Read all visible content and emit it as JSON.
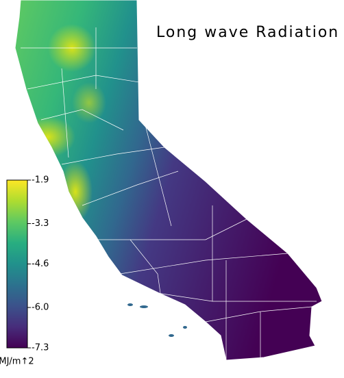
{
  "map": {
    "title": "Long wave Radiation",
    "colorbar": {
      "label": "MJ/m↑2",
      "colormap": "viridis",
      "clim": [
        -7.3,
        -1.9
      ],
      "ticks": [
        -1.9,
        -3.3,
        -4.6,
        {
          "value": -6,
          "label": "-6.0"
        },
        -7.3
      ]
    }
  }
}
